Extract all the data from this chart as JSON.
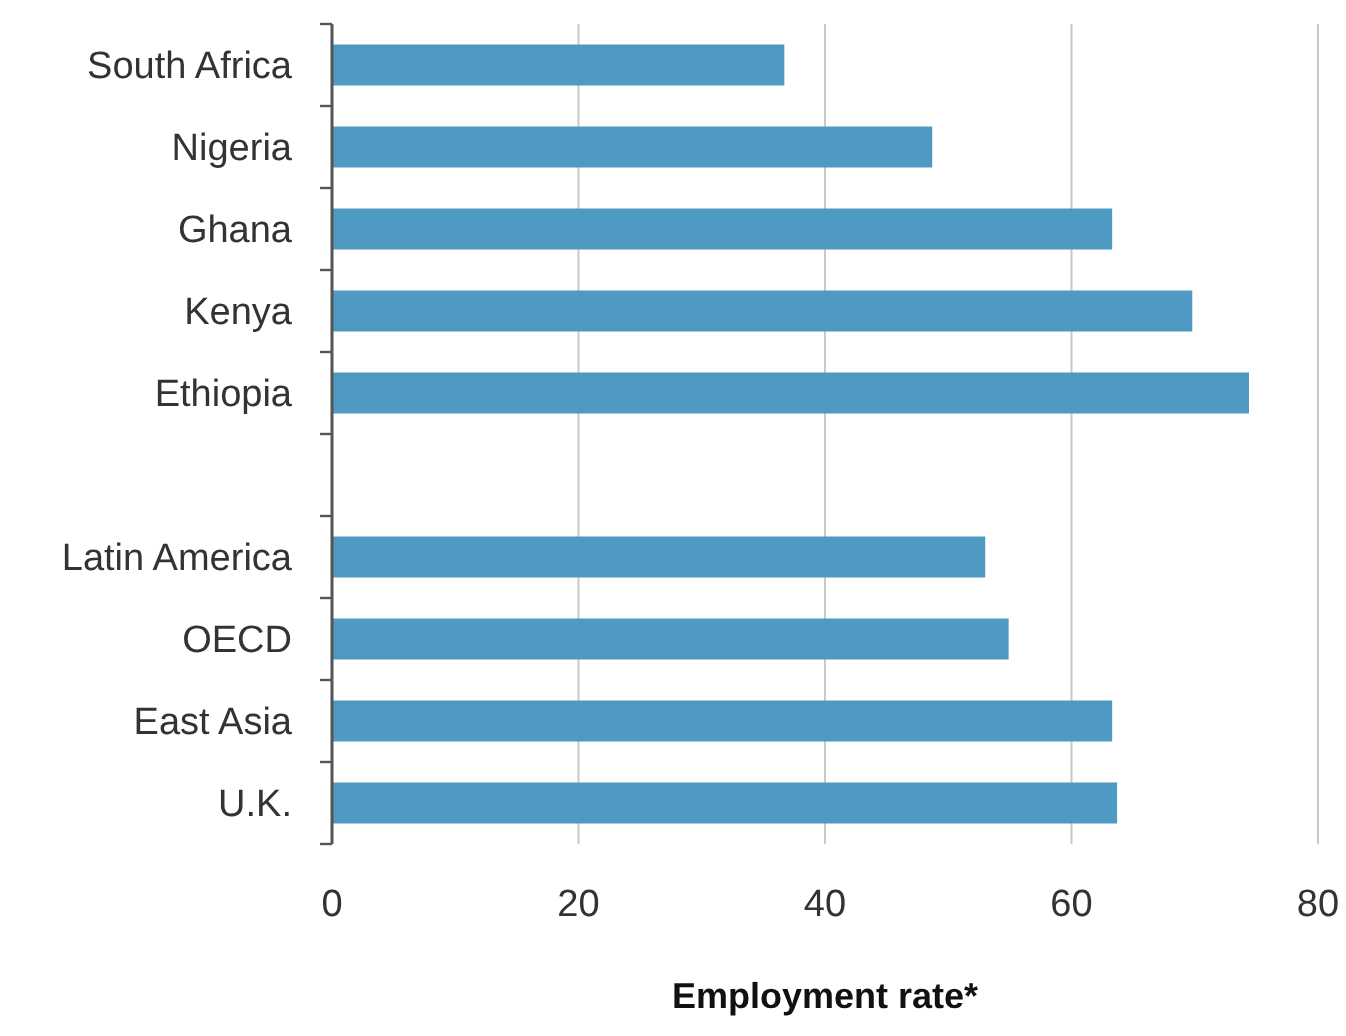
{
  "chart_data": {
    "type": "bar",
    "orientation": "horizontal",
    "xlabel": "Employment rate*",
    "categories": [
      "South Africa",
      "Nigeria",
      "Ghana",
      "Kenya",
      "Ethiopia",
      null,
      "Latin America",
      "OECD",
      "East Asia",
      "U.K."
    ],
    "values": [
      36.7,
      48.7,
      63.3,
      69.8,
      74.4,
      null,
      53.0,
      54.9,
      63.3,
      63.7
    ],
    "color": "#4f9ac2",
    "xlim": [
      0,
      80
    ],
    "xticks": [
      0,
      20,
      40,
      60,
      80
    ],
    "grid": "x"
  }
}
